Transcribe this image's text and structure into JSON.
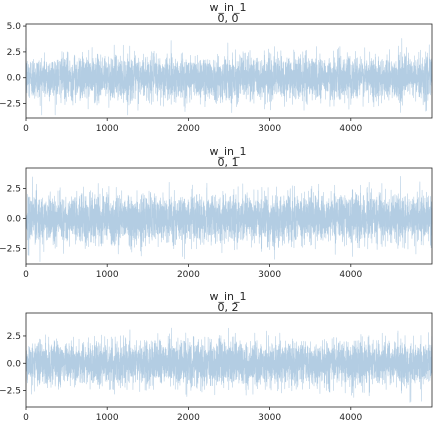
{
  "chart_data": [
    {
      "type": "line",
      "title": "w_in_1",
      "subtitle": "0, 0",
      "xlabel": "",
      "ylabel": "",
      "xlim": [
        0,
        5000
      ],
      "ylim": [
        -3.9,
        5.2
      ],
      "xticks": [
        0,
        1000,
        2000,
        3000,
        4000
      ],
      "yticks": [
        -2.5,
        0.0,
        2.5,
        5.0
      ],
      "xtick_labels": [
        "0",
        "1000",
        "2000",
        "3000",
        "4000"
      ],
      "ytick_labels": [
        "−2.5",
        "0.0",
        "2.5",
        "5.0"
      ],
      "grid": false,
      "series": [
        {
          "n_samples": 5000,
          "mean": 0.0,
          "std": 1.05,
          "min": -3.6,
          "max": 4.9,
          "color": "#b3cde3"
        }
      ]
    },
    {
      "type": "line",
      "title": "w_in_1",
      "subtitle": "0, 1",
      "xlabel": "",
      "ylabel": "",
      "xlim": [
        0,
        5000
      ],
      "ylim": [
        -3.8,
        4.2
      ],
      "xticks": [
        0,
        1000,
        2000,
        3000,
        4000
      ],
      "yticks": [
        -2.5,
        0.0,
        2.5
      ],
      "xtick_labels": [
        "0",
        "1000",
        "2000",
        "3000",
        "4000"
      ],
      "ytick_labels": [
        "−2.5",
        "0.0",
        "2.5"
      ],
      "grid": false,
      "series": [
        {
          "n_samples": 5000,
          "mean": 0.0,
          "std": 1.0,
          "min": -3.6,
          "max": 3.8,
          "color": "#b3cde3"
        }
      ]
    },
    {
      "type": "line",
      "title": "w_in_1",
      "subtitle": "0, 2",
      "xlabel": "",
      "ylabel": "",
      "xlim": [
        0,
        5000
      ],
      "ylim": [
        -4.0,
        4.6
      ],
      "xticks": [
        0,
        1000,
        2000,
        3000,
        4000
      ],
      "yticks": [
        -2.5,
        0.0,
        2.5
      ],
      "xtick_labels": [
        "0",
        "1000",
        "2000",
        "3000",
        "4000"
      ],
      "ytick_labels": [
        "−2.5",
        "0.0",
        "2.5"
      ],
      "grid": false,
      "series": [
        {
          "n_samples": 5000,
          "mean": 0.0,
          "std": 1.0,
          "min": -3.8,
          "max": 4.0,
          "color": "#b3cde3"
        }
      ]
    }
  ]
}
